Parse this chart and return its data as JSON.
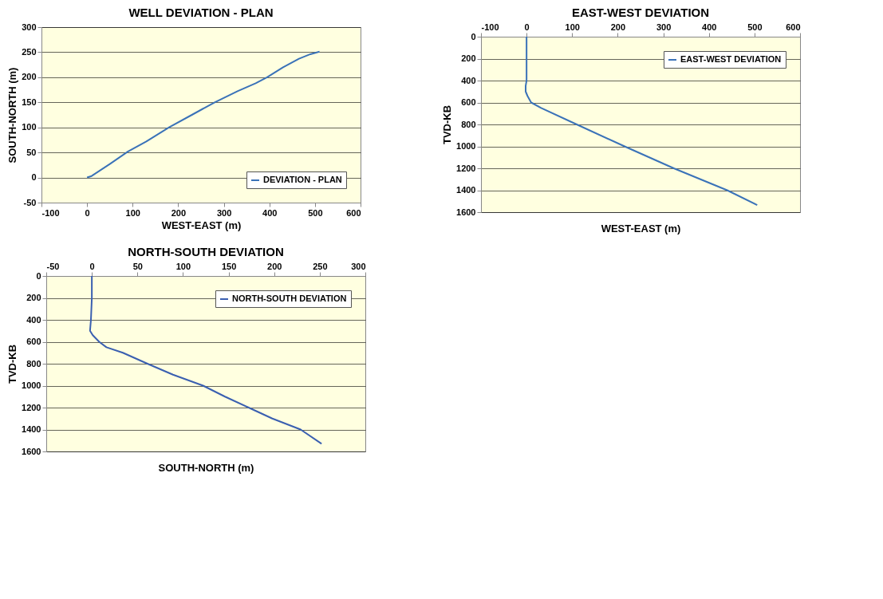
{
  "chart_data": [
    {
      "type": "line",
      "title": "WELL DEVIATION - PLAN",
      "xlabel": "WEST-EAST (m)",
      "ylabel": "SOUTH-NORTH (m)",
      "xlim": [
        -100,
        600
      ],
      "ylim": [
        -50,
        300
      ],
      "xticks": [
        -100,
        0,
        100,
        200,
        300,
        400,
        500,
        600
      ],
      "yticks": [
        -50,
        0,
        50,
        100,
        150,
        200,
        250,
        300
      ],
      "grid": "y",
      "legend": "bottom right",
      "series": [
        {
          "name": "DEVIATION - PLAN",
          "color": "#3a72b8",
          "x": [
            0,
            10,
            50,
            90,
            130,
            180,
            230,
            280,
            330,
            370,
            395,
            430,
            465,
            490,
            510
          ],
          "values": [
            0,
            3,
            27,
            52,
            72,
            100,
            125,
            150,
            172,
            188,
            200,
            220,
            237,
            246,
            251
          ]
        }
      ]
    },
    {
      "type": "line",
      "title": "EAST-WEST DEVIATION",
      "xlabel": "WEST-EAST (m)",
      "ylabel": "TVD-KB",
      "xlim": [
        -100,
        600
      ],
      "ylim": [
        1600,
        0
      ],
      "xticks": [
        -100,
        0,
        100,
        200,
        300,
        400,
        500,
        600
      ],
      "yticks": [
        0,
        200,
        400,
        600,
        800,
        1000,
        1200,
        1400,
        1600
      ],
      "grid": "y",
      "legend": "top right",
      "series": [
        {
          "name": "EAST-WEST DEVIATION",
          "color": "#3a72b8",
          "x": [
            0,
            0,
            -2,
            -2,
            2,
            10,
            32,
            110,
            215,
            323,
            440,
            506
          ],
          "values": [
            0,
            400,
            450,
            500,
            540,
            600,
            650,
            800,
            1000,
            1200,
            1400,
            1535
          ]
        }
      ]
    },
    {
      "type": "line",
      "title": "NORTH-SOUTH DEVIATION",
      "xlabel": "SOUTH-NORTH (m)",
      "ylabel": "TVD-KB",
      "xlim": [
        -50,
        300
      ],
      "ylim": [
        1600,
        0
      ],
      "xticks": [
        -50,
        0,
        50,
        100,
        150,
        200,
        250,
        300
      ],
      "yticks": [
        0,
        200,
        400,
        600,
        800,
        1000,
        1200,
        1400,
        1600
      ],
      "grid": "y",
      "legend": "top right",
      "series": [
        {
          "name": "NORTH-SOUTH DEVIATION",
          "color": "#3a5fb0",
          "x": [
            0,
            0,
            -1,
            -2,
            1,
            8,
            16,
            34,
            61,
            89,
            122,
            146,
            172,
            198,
            229,
            252
          ],
          "values": [
            0,
            200,
            400,
            500,
            540,
            600,
            650,
            700,
            800,
            900,
            1000,
            1100,
            1200,
            1300,
            1400,
            1530
          ]
        }
      ]
    }
  ]
}
